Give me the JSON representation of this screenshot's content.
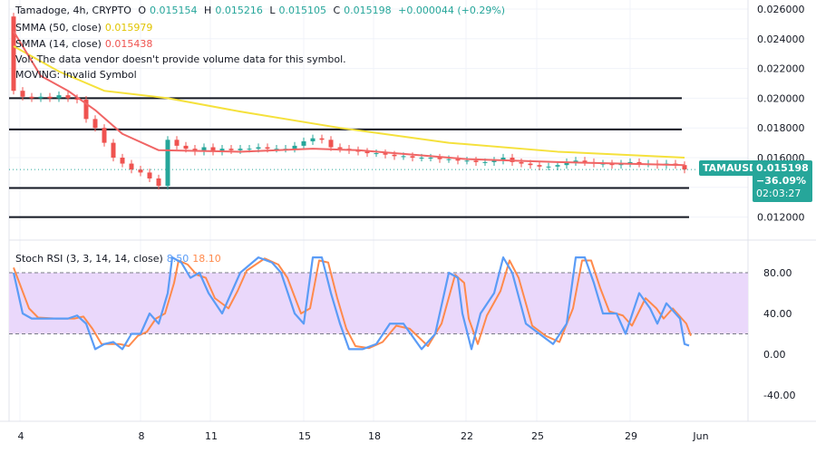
{
  "legend": {
    "symbol": "Tamadoge, 4h, CRYPTO",
    "o_label": "O",
    "o": "0.015154",
    "h_label": "H",
    "h": "0.015216",
    "l_label": "L",
    "l": "0.015105",
    "c_label": "C",
    "c": "0.015198",
    "change": "+0.000044 (+0.29%)",
    "smma50_label": "SMMA (50, close)",
    "smma50": "0.015979",
    "smma14_label": "SMMA (14, close)",
    "smma14": "0.015438",
    "vol": "Vol: The data vendor doesn't provide volume data for this symbol.",
    "moving": "MOVING: Invalid Symbol",
    "stoch_label": "Stoch RSI (3, 3, 14, 14, close)",
    "stoch_k": "8.50",
    "stoch_d": "18.10"
  },
  "price_tag": {
    "symbol": "TAMAUSD",
    "price": "0.015198",
    "change": "−36.09%",
    "countdown": "02:03:27"
  },
  "colors": {
    "up": "#26a69a",
    "down": "#ef5350",
    "smma50": "#f5e13c",
    "smma14": "#f06565",
    "k": "#5b9cf6",
    "d": "#ff8a4c",
    "band": "#ead8fb"
  },
  "chart_data": [
    {
      "type": "candlestick",
      "title": "Tamadoge, 4h, CRYPTO",
      "ylim": [
        0.0105,
        0.0265
      ],
      "y_ticks": [
        "0.026000",
        "0.024000",
        "0.022000",
        "0.020000",
        "0.018000",
        "0.016000",
        "0.012000"
      ],
      "y_tick_values": [
        0.026,
        0.024,
        0.022,
        0.02,
        0.018,
        0.016,
        0.012
      ],
      "x_ticks": [
        {
          "label": "4",
          "bar": 1.2
        },
        {
          "label": "8",
          "bar": 14.5
        },
        {
          "label": "11",
          "bar": 22.2
        },
        {
          "label": "15",
          "bar": 32.5
        },
        {
          "label": "18",
          "bar": 40.2
        },
        {
          "label": "22",
          "bar": 50.4
        },
        {
          "label": "25",
          "bar": 58.2
        },
        {
          "label": "29",
          "bar": 68.5
        },
        {
          "label": "Jun",
          "bar": 76.2
        }
      ],
      "first_open": 0.0255,
      "closes": [
        0.0205,
        0.0201,
        0.02,
        0.0201,
        0.02,
        0.0202,
        0.02,
        0.0199,
        0.0186,
        0.018,
        0.017,
        0.016,
        0.0156,
        0.0152,
        0.015,
        0.0146,
        0.0141,
        0.0172,
        0.0168,
        0.0166,
        0.0164,
        0.0167,
        0.0164,
        0.0166,
        0.0165,
        0.0166,
        0.0166,
        0.0167,
        0.0166,
        0.0166,
        0.0166,
        0.0168,
        0.0171,
        0.0173,
        0.0172,
        0.0167,
        0.0166,
        0.0165,
        0.0164,
        0.0163,
        0.0163,
        0.0162,
        0.0161,
        0.0161,
        0.016,
        0.016,
        0.016,
        0.0159,
        0.0159,
        0.0158,
        0.0158,
        0.0157,
        0.0157,
        0.0158,
        0.016,
        0.0157,
        0.0156,
        0.0155,
        0.0154,
        0.0154,
        0.0155,
        0.0157,
        0.0158,
        0.0157,
        0.0156,
        0.0156,
        0.0155,
        0.0156,
        0.0157,
        0.0156,
        0.0156,
        0.0155,
        0.0156,
        0.0155,
        0.0152
      ],
      "horizontal_levels": [
        0.02,
        0.0179,
        0.01396,
        0.012
      ],
      "smma50": [
        [
          0,
          0.0235
        ],
        [
          5,
          0.0218
        ],
        [
          10,
          0.0205
        ],
        [
          17,
          0.02
        ],
        [
          25,
          0.0191
        ],
        [
          36,
          0.018
        ],
        [
          48,
          0.017
        ],
        [
          60,
          0.0164
        ],
        [
          74,
          0.016
        ]
      ],
      "smma14": [
        [
          0,
          0.0245
        ],
        [
          3,
          0.0215
        ],
        [
          6,
          0.0205
        ],
        [
          9,
          0.0192
        ],
        [
          12,
          0.0176
        ],
        [
          16,
          0.0165
        ],
        [
          25,
          0.0164
        ],
        [
          33,
          0.0166
        ],
        [
          38,
          0.0165
        ],
        [
          50,
          0.0159
        ],
        [
          60,
          0.0157
        ],
        [
          74,
          0.0155
        ]
      ]
    },
    {
      "type": "line",
      "title": "Stoch RSI (3, 3, 14, 14, close)",
      "ylim": [
        -55,
        105
      ],
      "y_ticks": [
        "80.00",
        "40.00",
        "0.00",
        "-40.00"
      ],
      "y_tick_values": [
        80,
        40,
        0,
        -40
      ],
      "band": [
        20,
        80
      ],
      "k": [
        [
          0,
          80
        ],
        [
          1,
          40
        ],
        [
          2,
          35
        ],
        [
          4,
          35
        ],
        [
          6,
          35
        ],
        [
          7,
          38
        ],
        [
          8,
          30
        ],
        [
          9,
          5
        ],
        [
          10,
          10
        ],
        [
          11,
          12
        ],
        [
          12,
          5
        ],
        [
          13,
          20
        ],
        [
          14,
          20
        ],
        [
          15,
          40
        ],
        [
          16,
          30
        ],
        [
          17,
          60
        ],
        [
          17.5,
          95
        ],
        [
          18.5,
          90
        ],
        [
          19.5,
          75
        ],
        [
          20.5,
          80
        ],
        [
          21.5,
          60
        ],
        [
          23,
          40
        ],
        [
          24,
          60
        ],
        [
          25,
          80
        ],
        [
          27,
          95
        ],
        [
          28.5,
          90
        ],
        [
          29.5,
          80
        ],
        [
          31,
          40
        ],
        [
          32,
          30
        ],
        [
          33,
          95
        ],
        [
          34,
          95
        ],
        [
          35,
          60
        ],
        [
          36,
          30
        ],
        [
          37,
          5
        ],
        [
          38.5,
          5
        ],
        [
          40,
          10
        ],
        [
          41.5,
          30
        ],
        [
          43,
          30
        ],
        [
          45,
          5
        ],
        [
          46.5,
          20
        ],
        [
          48,
          80
        ],
        [
          49,
          75
        ],
        [
          49.5,
          40
        ],
        [
          50.5,
          5
        ],
        [
          51.5,
          40
        ],
        [
          53,
          60
        ],
        [
          54,
          95
        ],
        [
          55,
          80
        ],
        [
          56.5,
          30
        ],
        [
          58,
          20
        ],
        [
          59.5,
          10
        ],
        [
          61,
          30
        ],
        [
          62,
          95
        ],
        [
          63,
          95
        ],
        [
          64,
          70
        ],
        [
          65,
          40
        ],
        [
          66.5,
          40
        ],
        [
          67.5,
          20
        ],
        [
          69,
          60
        ],
        [
          70.2,
          45
        ],
        [
          71,
          30
        ],
        [
          72,
          50
        ],
        [
          73.5,
          35
        ],
        [
          74,
          10
        ],
        [
          74.5,
          8.5
        ]
      ],
      "d": [
        [
          0,
          85
        ],
        [
          1.7,
          45
        ],
        [
          2.7,
          36
        ],
        [
          4.7,
          35
        ],
        [
          6.7,
          35
        ],
        [
          7.7,
          37
        ],
        [
          8.7,
          25
        ],
        [
          9.7,
          10
        ],
        [
          10.7,
          10
        ],
        [
          11.7,
          10
        ],
        [
          12.7,
          8
        ],
        [
          13.7,
          18
        ],
        [
          14.7,
          22
        ],
        [
          15.7,
          35
        ],
        [
          16.7,
          40
        ],
        [
          17.7,
          70
        ],
        [
          18.2,
          92
        ],
        [
          19.2,
          88
        ],
        [
          20.2,
          78
        ],
        [
          21.2,
          75
        ],
        [
          22.2,
          55
        ],
        [
          23.7,
          45
        ],
        [
          24.7,
          62
        ],
        [
          25.7,
          82
        ],
        [
          27.7,
          94
        ],
        [
          29.2,
          88
        ],
        [
          30.2,
          75
        ],
        [
          31.7,
          40
        ],
        [
          32.7,
          45
        ],
        [
          33.7,
          92
        ],
        [
          34.7,
          90
        ],
        [
          35.7,
          55
        ],
        [
          36.7,
          25
        ],
        [
          37.7,
          8
        ],
        [
          39.2,
          6
        ],
        [
          40.7,
          12
        ],
        [
          42.2,
          28
        ],
        [
          43.7,
          25
        ],
        [
          45.7,
          8
        ],
        [
          47.2,
          30
        ],
        [
          48.7,
          78
        ],
        [
          49.7,
          70
        ],
        [
          50.2,
          35
        ],
        [
          51.2,
          10
        ],
        [
          52.2,
          38
        ],
        [
          53.7,
          62
        ],
        [
          54.7,
          92
        ],
        [
          55.7,
          75
        ],
        [
          57.2,
          28
        ],
        [
          58.7,
          18
        ],
        [
          60.2,
          12
        ],
        [
          61.7,
          45
        ],
        [
          62.7,
          92
        ],
        [
          63.7,
          92
        ],
        [
          64.7,
          65
        ],
        [
          65.7,
          42
        ],
        [
          67.2,
          38
        ],
        [
          68.2,
          28
        ],
        [
          69.7,
          55
        ],
        [
          70.9,
          45
        ],
        [
          71.7,
          35
        ],
        [
          72.7,
          45
        ],
        [
          74.2,
          30
        ],
        [
          74.7,
          18.1
        ]
      ]
    }
  ]
}
